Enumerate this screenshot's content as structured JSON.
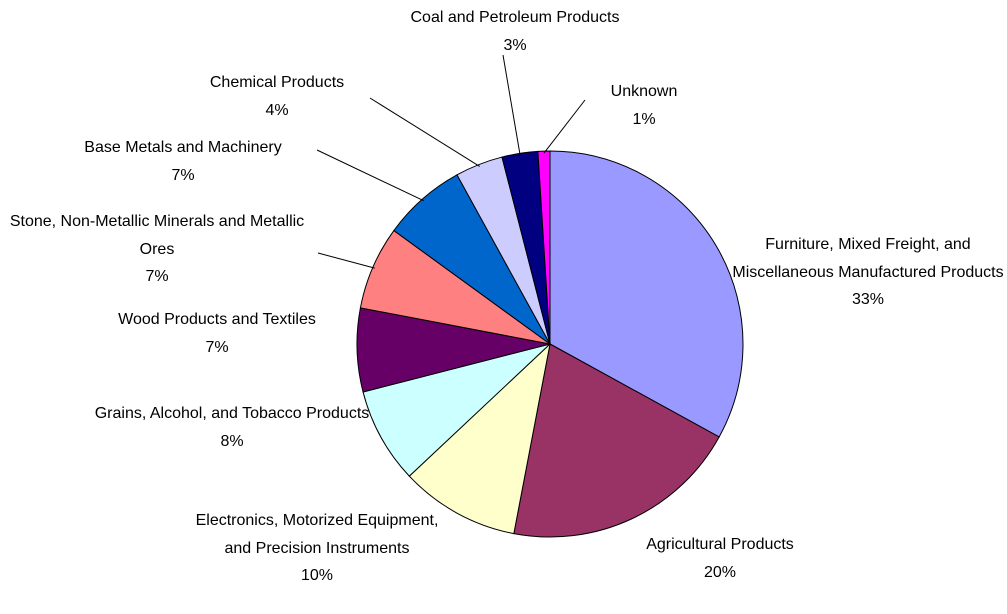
{
  "chart_data": {
    "type": "pie",
    "categories": [
      "Furniture, Mixed Freight, and Miscellaneous Manufactured Products",
      "Agricultural Products",
      "Electronics, Motorized Equipment, and Precision Instruments",
      "Grains, Alcohol, and Tobacco Products",
      "Wood Products and Textiles",
      "Stone, Non-Metallic Minerals and Metallic Ores",
      "Base Metals and Machinery",
      "Chemical Products",
      "Coal and Petroleum Products",
      "Unknown"
    ],
    "values": [
      33,
      20,
      10,
      8,
      7,
      7,
      7,
      4,
      3,
      1
    ],
    "value_labels": [
      "33%",
      "20%",
      "10%",
      "8%",
      "7%",
      "7%",
      "7%",
      "4%",
      "3%",
      "1%"
    ],
    "colors": [
      "#9999ff",
      "#993366",
      "#ffffcc",
      "#ccffff",
      "#660066",
      "#ff8080",
      "#0066cc",
      "#ccccff",
      "#000080",
      "#ff00ff"
    ]
  }
}
